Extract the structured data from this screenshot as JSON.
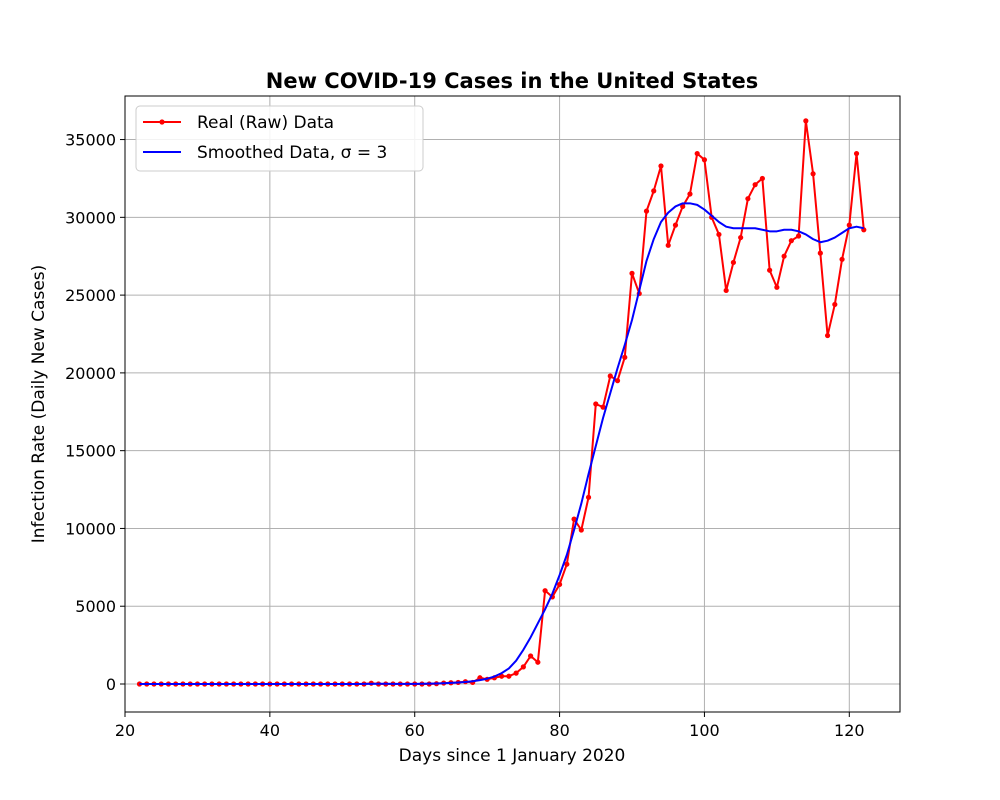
{
  "chart_data": {
    "type": "line",
    "title": "New COVID-19 Cases in the United States",
    "xlabel": "Days since 1 January 2020",
    "ylabel": "Infection Rate (Daily New Cases)",
    "xlim": [
      20,
      127
    ],
    "ylim": [
      -1800,
      37800
    ],
    "xticks": [
      20,
      40,
      60,
      80,
      100,
      120
    ],
    "yticks": [
      0,
      5000,
      10000,
      15000,
      20000,
      25000,
      30000,
      35000
    ],
    "grid": true,
    "legend_position": "top-left",
    "x": [
      22,
      23,
      24,
      25,
      26,
      27,
      28,
      29,
      30,
      31,
      32,
      33,
      34,
      35,
      36,
      37,
      38,
      39,
      40,
      41,
      42,
      43,
      44,
      45,
      46,
      47,
      48,
      49,
      50,
      51,
      52,
      53,
      54,
      55,
      56,
      57,
      58,
      59,
      60,
      61,
      62,
      63,
      64,
      65,
      66,
      67,
      68,
      69,
      70,
      71,
      72,
      73,
      74,
      75,
      76,
      77,
      78,
      79,
      80,
      81,
      82,
      83,
      84,
      85,
      86,
      87,
      88,
      89,
      90,
      91,
      92,
      93,
      94,
      95,
      96,
      97,
      98,
      99,
      100,
      101,
      102,
      103,
      104,
      105,
      106,
      107,
      108,
      109,
      110,
      111,
      112,
      113,
      114,
      115,
      116,
      117,
      118,
      119,
      120,
      121,
      122
    ],
    "series": [
      {
        "name": "Real (Raw) Data",
        "color": "#ff0000",
        "marker": "circle",
        "values": [
          0,
          0,
          0,
          0,
          0,
          0,
          0,
          0,
          0,
          0,
          0,
          0,
          0,
          0,
          0,
          0,
          0,
          0,
          0,
          0,
          0,
          0,
          0,
          0,
          0,
          0,
          0,
          0,
          0,
          0,
          0,
          0,
          50,
          0,
          0,
          0,
          0,
          0,
          0,
          0,
          0,
          20,
          60,
          80,
          100,
          150,
          100,
          400,
          300,
          400,
          500,
          500,
          700,
          1100,
          1800,
          1400,
          6000,
          5600,
          6400,
          7700,
          10600,
          9900,
          12000,
          18000,
          17800,
          19800,
          19500,
          21000,
          26400,
          25100,
          30400,
          31700,
          33300,
          28200,
          29500,
          30700,
          31500,
          34100,
          33700,
          30000,
          28900,
          25300,
          27100,
          28700,
          31200,
          32100,
          32500,
          26600,
          25500,
          27500,
          28500,
          28800,
          36200,
          32800,
          27700,
          22400,
          24400,
          27300,
          29500,
          34100,
          29200
        ]
      },
      {
        "name": "Smoothed Data, σ = 3",
        "color": "#0000ff",
        "marker": "none",
        "values": [
          0,
          0,
          0,
          0,
          0,
          0,
          0,
          0,
          0,
          0,
          0,
          0,
          0,
          0,
          0,
          0,
          0,
          0,
          0,
          0,
          0,
          0,
          0,
          0,
          0,
          0,
          0,
          0,
          0,
          0,
          0,
          5,
          10,
          12,
          12,
          10,
          8,
          8,
          10,
          15,
          22,
          35,
          50,
          70,
          95,
          130,
          180,
          250,
          340,
          480,
          700,
          1000,
          1500,
          2200,
          3000,
          3900,
          4800,
          5800,
          7000,
          8300,
          9900,
          11600,
          13500,
          15300,
          17100,
          18700,
          20300,
          21800,
          23400,
          25300,
          27200,
          28600,
          29700,
          30300,
          30700,
          30900,
          30900,
          30800,
          30500,
          30100,
          29700,
          29400,
          29300,
          29300,
          29300,
          29300,
          29200,
          29100,
          29100,
          29200,
          29200,
          29100,
          28900,
          28600,
          28400,
          28500,
          28700,
          29000,
          29300,
          29400,
          29300
        ]
      }
    ]
  }
}
